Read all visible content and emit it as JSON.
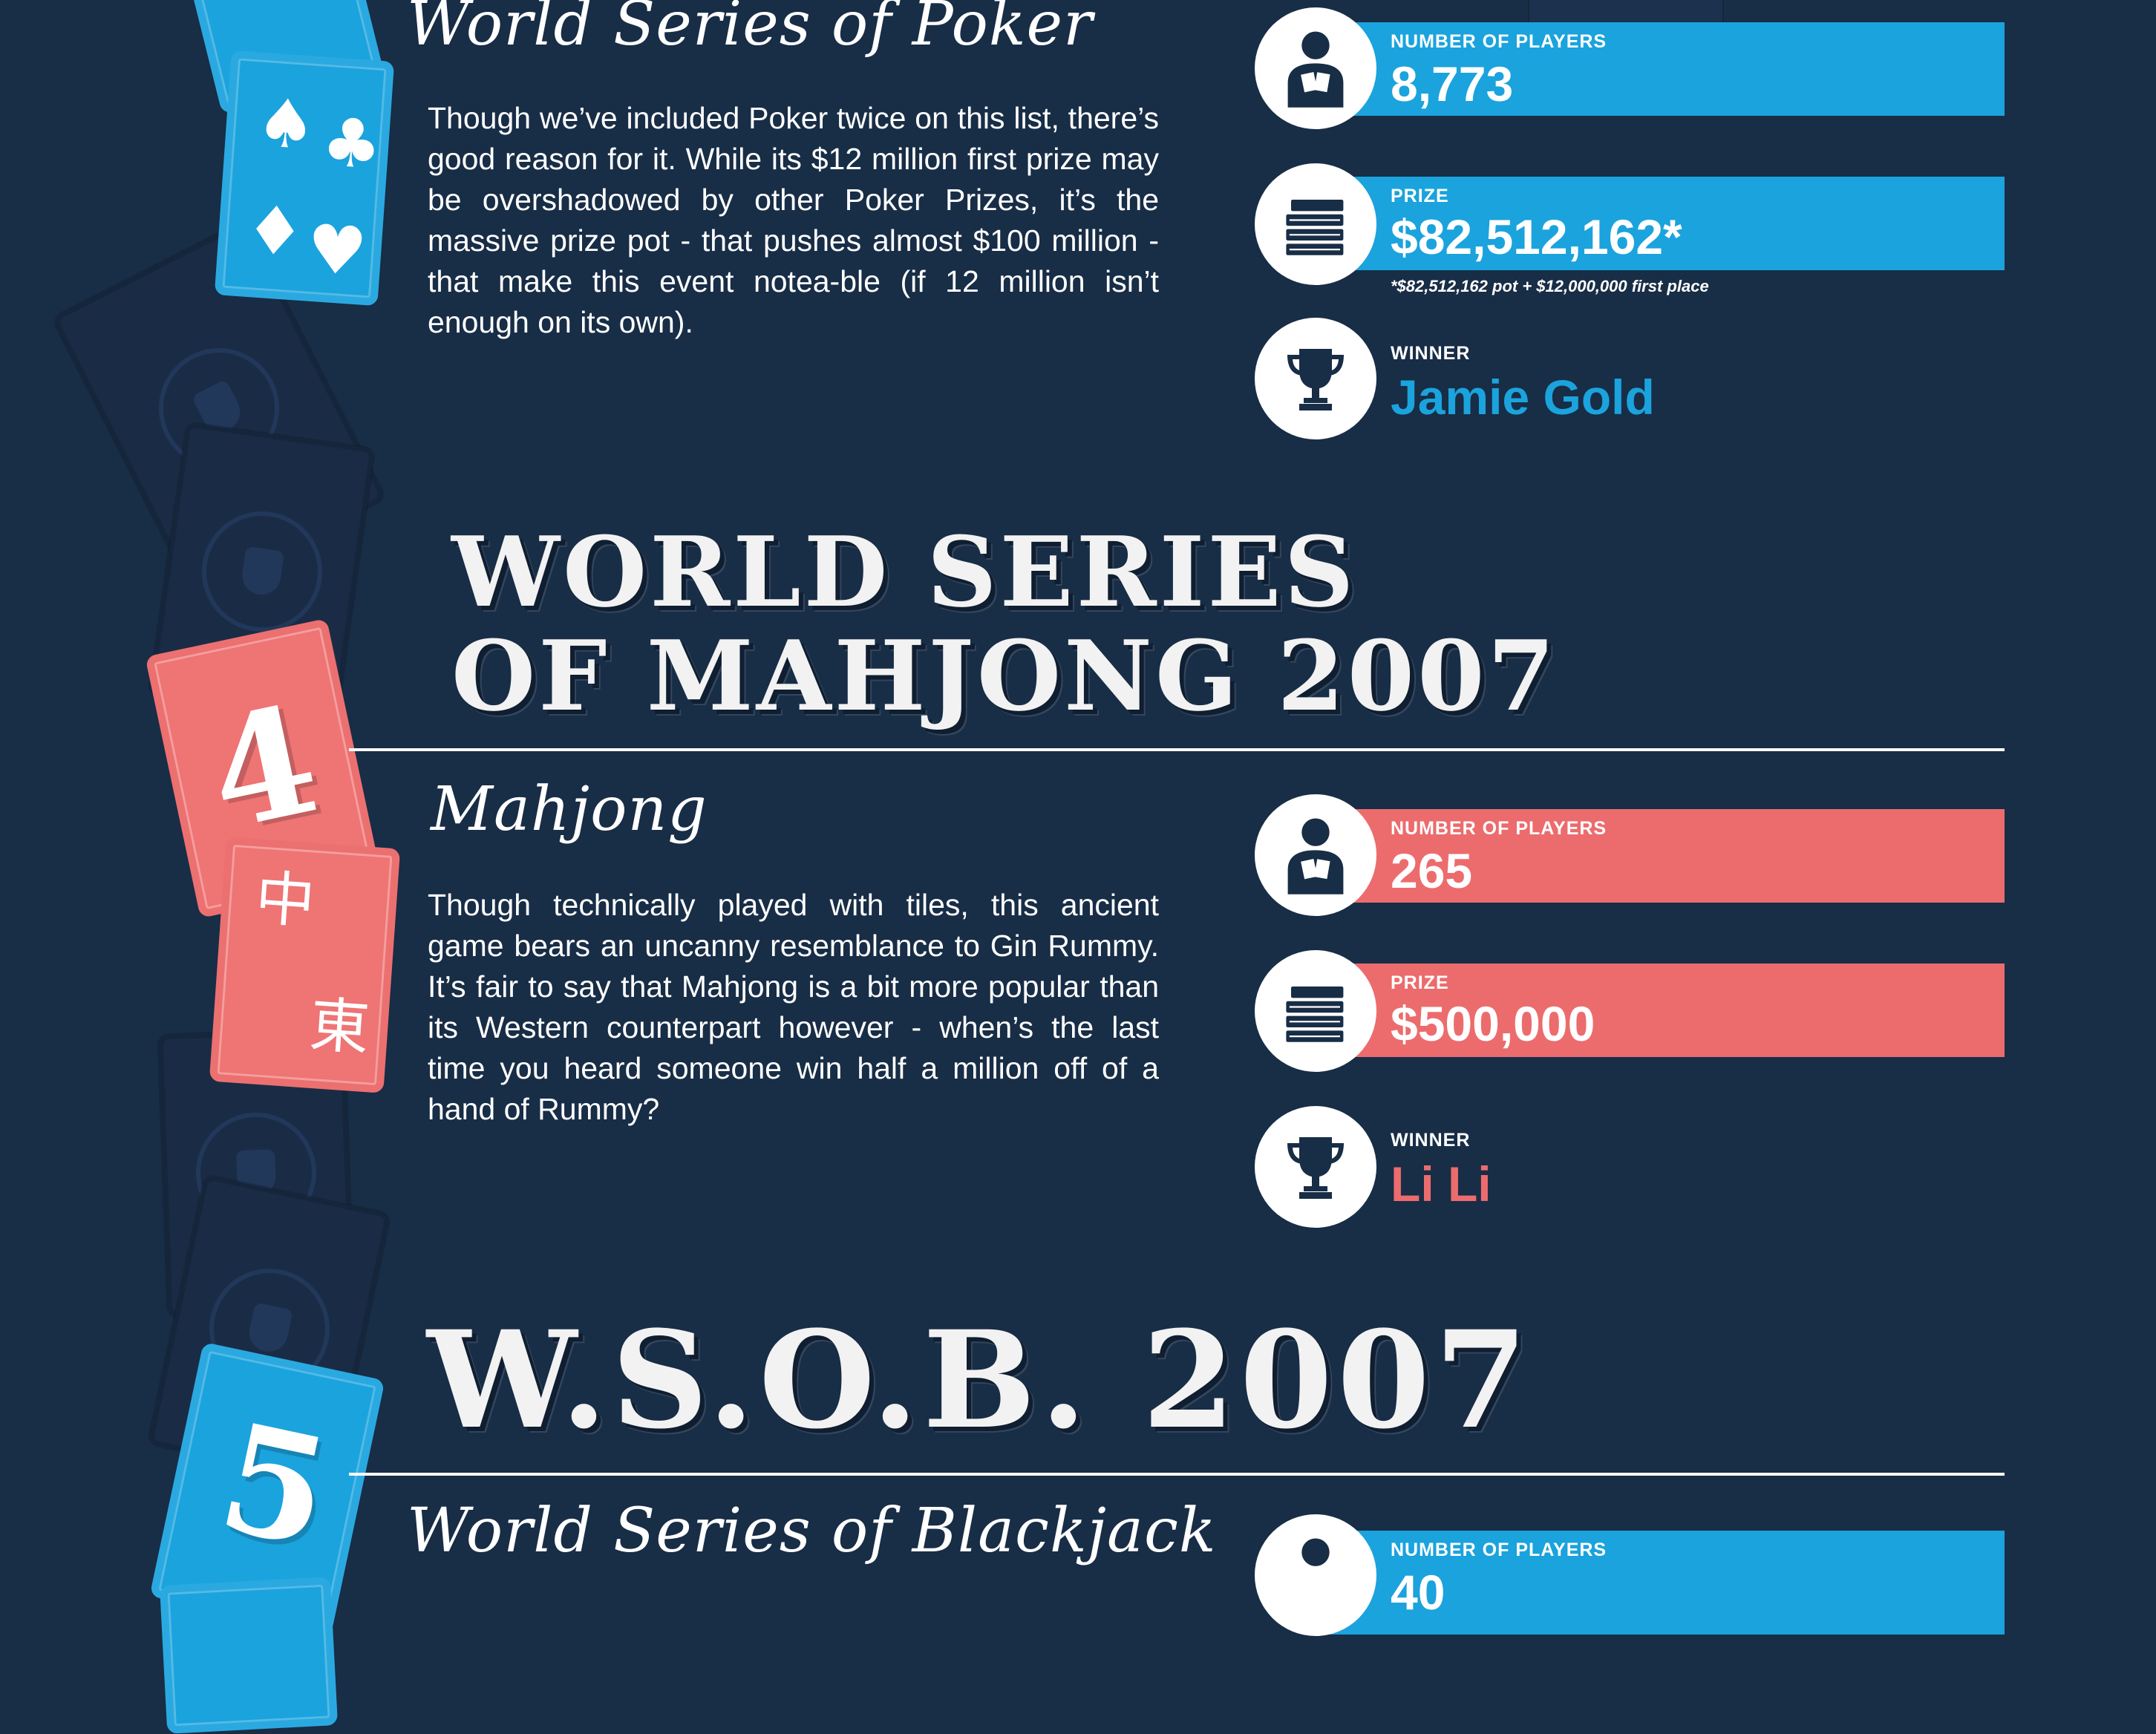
{
  "sections": [
    {
      "subtitle": "World Series of Poker",
      "body": "Though we’ve included Poker twice on this list, there’s good reason for it. While its $12 million first prize may be overshadowed by other Poker Prizes, it’s the massive prize pot - that pushes almost $100 million - that make this event notea-ble (if 12 million isn’t enough on its own).",
      "stats": {
        "players_label": "NUMBER OF PLAYERS",
        "players_value": "8,773",
        "prize_label": "PRIZE",
        "prize_value": "$82,512,162*",
        "prize_footnote": "*$82,512,162 pot + $12,000,000 first place",
        "winner_label": "WINNER",
        "winner_value": "Jamie Gold"
      },
      "accent": "#1ba3dd",
      "card_suits": [
        "♠",
        "♣",
        "♦",
        "♥"
      ]
    },
    {
      "heading_line1": "WORLD SERIES",
      "heading_line2": "OF MAHJONG 2007",
      "card_number": "4",
      "card_glyphs": [
        "中",
        "東"
      ],
      "subtitle": "Mahjong",
      "body": "Though technically played with tiles, this ancient game bears an uncanny resemblance to Gin Rummy. It’s fair to say that Mahjong is a bit more popular than its Western counterpart however - when’s the last time you heard someone win half a million off of a hand of Rummy?",
      "stats": {
        "players_label": "NUMBER OF PLAYERS",
        "players_value": "265",
        "prize_label": "PRIZE",
        "prize_value": "$500,000",
        "winner_label": "WINNER",
        "winner_value": "Li Li"
      },
      "accent": "#ec6c6e"
    },
    {
      "heading_line1": "W.S.O.B. 2007",
      "card_number": "5",
      "subtitle": "World Series of Blackjack",
      "stats": {
        "players_label": "NUMBER OF PLAYERS",
        "players_value": "40"
      },
      "accent": "#1ba3dd"
    }
  ],
  "icons": [
    "player-icon",
    "money-stack-icon",
    "trophy-icon"
  ]
}
